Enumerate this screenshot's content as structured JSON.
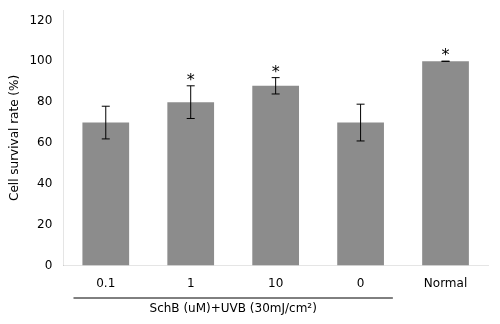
{
  "chart_data": {
    "type": "bar",
    "categories": [
      "0.1",
      "1",
      "10",
      "0",
      "Normal"
    ],
    "values": [
      70,
      80,
      88,
      70,
      100
    ],
    "errors": [
      8,
      8,
      4,
      9,
      0
    ],
    "color": "#8c8c8c",
    "ylabel": "Cell survival rate (%)",
    "ylim": [
      0,
      125
    ],
    "yticks": [
      0,
      20,
      40,
      60,
      80,
      100,
      120
    ],
    "grid": false,
    "annotations": [
      {
        "text": "*",
        "category": "1"
      },
      {
        "text": "*",
        "category": "10"
      },
      {
        "text": "*",
        "category": "Normal"
      },
      {
        "text": "SchB (uM)+UVB (30mJ/cm²)",
        "categories": [
          "0.1",
          "1",
          "10",
          "0"
        ]
      }
    ]
  }
}
